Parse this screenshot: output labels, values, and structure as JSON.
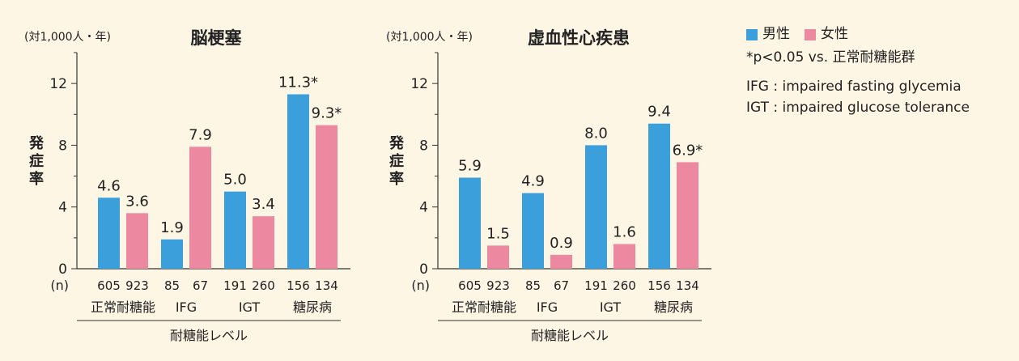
{
  "colors": {
    "male": "#3a9fdb",
    "female": "#ec889f",
    "background": "#fdf6e5",
    "axis": "#333333"
  },
  "legend": {
    "male": "男性",
    "female": "女性",
    "note": "*p<0.05 vs. 正常耐糖能群",
    "abbr1": "IFG : impaired fasting glycemia",
    "abbr2": "IGT : impaired glucose tolerance"
  },
  "chart_data": [
    {
      "type": "bar",
      "title": "脳梗塞",
      "ylabel": "発症率",
      "unit": "(対1,000人・年)",
      "xlabel": "耐糖能レベル",
      "n_label": "(n)",
      "ylim": [
        0,
        14
      ],
      "yticks": [
        0,
        4,
        8,
        12
      ],
      "categories": [
        "正常耐糖能",
        "IFG",
        "IGT",
        "糖尿病"
      ],
      "series": [
        {
          "name": "男性",
          "key": "male",
          "values": [
            4.6,
            1.9,
            5.0,
            11.3
          ],
          "labels": [
            "4.6",
            "1.9",
            "5.0",
            "11.3*"
          ],
          "n": [
            "605",
            "85",
            "191",
            "156"
          ]
        },
        {
          "name": "女性",
          "key": "female",
          "values": [
            3.6,
            7.9,
            3.4,
            9.3
          ],
          "labels": [
            "3.6",
            "7.9",
            "3.4",
            "9.3*"
          ],
          "n": [
            "923",
            "67",
            "260",
            "134"
          ]
        }
      ]
    },
    {
      "type": "bar",
      "title": "虚血性心疾患",
      "ylabel": "発症率",
      "unit": "(対1,000人・年)",
      "xlabel": "耐糖能レベル",
      "n_label": "(n)",
      "ylim": [
        0,
        14
      ],
      "yticks": [
        0,
        4,
        8,
        12
      ],
      "categories": [
        "正常耐糖能",
        "IFG",
        "IGT",
        "糖尿病"
      ],
      "series": [
        {
          "name": "男性",
          "key": "male",
          "values": [
            5.9,
            4.9,
            8.0,
            9.4
          ],
          "labels": [
            "5.9",
            "4.9",
            "8.0",
            "9.4"
          ],
          "n": [
            "605",
            "85",
            "191",
            "156"
          ]
        },
        {
          "name": "女性",
          "key": "female",
          "values": [
            1.5,
            0.9,
            1.6,
            6.9
          ],
          "labels": [
            "1.5",
            "0.9",
            "1.6",
            "6.9*"
          ],
          "n": [
            "923",
            "67",
            "260",
            "134"
          ]
        }
      ]
    }
  ]
}
